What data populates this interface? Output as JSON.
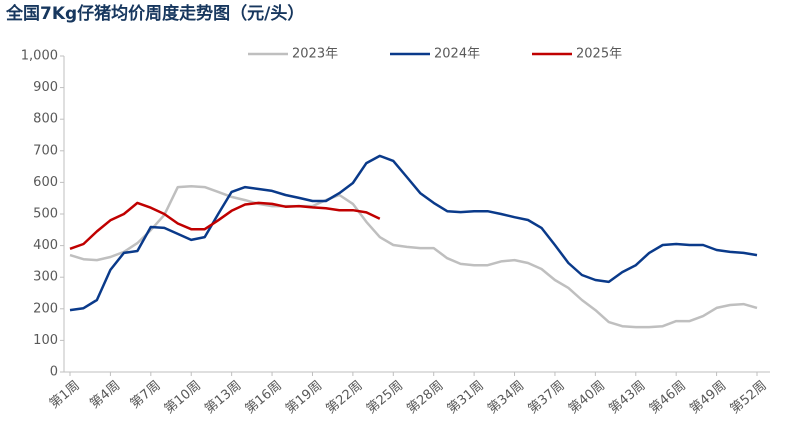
{
  "chart_data": {
    "type": "line",
    "title": "全国7Kg仔猪均价周度走势图（元/头）",
    "categories": [
      "第1周",
      null,
      null,
      "第4周",
      null,
      null,
      "第7周",
      null,
      null,
      "第10周",
      null,
      null,
      "第13周",
      null,
      null,
      "第16周",
      null,
      null,
      "第19周",
      null,
      null,
      "第22周",
      null,
      null,
      "第25周",
      null,
      null,
      "第28周",
      null,
      null,
      "第31周",
      null,
      null,
      "第34周",
      null,
      null,
      "第37周",
      null,
      null,
      "第40周",
      null,
      null,
      "第43周",
      null,
      null,
      "第46周",
      null,
      null,
      "第49周",
      null,
      null,
      "第52周"
    ],
    "series": [
      {
        "name": "2023年",
        "color": "#bfbfbf",
        "values": [
          370,
          357,
          354,
          364,
          380,
          408,
          449,
          497,
          585,
          588,
          585,
          570,
          554,
          544,
          532,
          525,
          525,
          525,
          525,
          544,
          560,
          532,
          475,
          427,
          402,
          396,
          392,
          392,
          360,
          342,
          338,
          338,
          350,
          354,
          345,
          326,
          291,
          266,
          228,
          196,
          158,
          145,
          142,
          142,
          145,
          161,
          161,
          177,
          203,
          212,
          215,
          203
        ]
      },
      {
        "name": "2024年",
        "color": "#0a3a8a",
        "values": [
          196,
          202,
          228,
          323,
          377,
          383,
          459,
          456,
          437,
          418,
          427,
          500,
          570,
          585,
          579,
          573,
          560,
          551,
          541,
          541,
          566,
          598,
          661,
          684,
          668,
          617,
          566,
          535,
          509,
          506,
          509,
          509,
          500,
          490,
          481,
          456,
          402,
          345,
          307,
          291,
          285,
          316,
          338,
          377,
          402,
          405,
          402,
          402,
          386,
          380,
          377,
          370
        ]
      },
      {
        "name": "2025年",
        "color": "#c00000",
        "values": [
          390,
          405,
          445,
          480,
          500,
          535,
          520,
          500,
          470,
          452,
          452,
          480,
          510,
          530,
          535,
          532,
          523,
          525,
          521,
          518,
          512,
          512,
          505,
          485,
          null,
          null,
          null,
          null,
          null,
          null,
          null,
          null,
          null,
          null,
          null,
          null,
          null,
          null,
          null,
          null,
          null,
          null,
          null,
          null,
          null,
          null,
          null,
          null,
          null,
          null,
          null,
          null
        ]
      }
    ],
    "ylim": [
      0,
      1000
    ],
    "yticks": [
      0,
      100,
      200,
      300,
      400,
      500,
      600,
      700,
      800,
      900,
      {
        "value": 1000,
        "label": "1,000"
      }
    ],
    "grid": false
  }
}
